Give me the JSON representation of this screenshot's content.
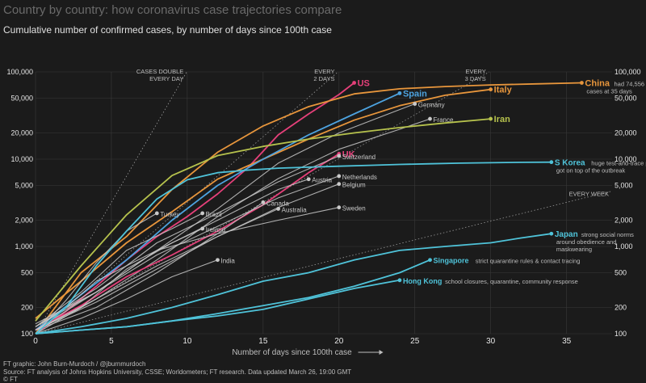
{
  "header": {
    "title": "Country by country: how coronavirus case trajectories compare",
    "subtitle": "Cumulative number of confirmed cases, by number of days since 100th case"
  },
  "footer": {
    "credit": "FT graphic: John Burn-Murdoch / @jburnmurdoch",
    "source": "Source: FT analysis of Johns Hopkins University, CSSE; Worldometers; FT research. Data updated March 26, 19:00 GMT",
    "copyright": "© FT"
  },
  "chart_data": {
    "type": "line",
    "title": "Country by country: how coronavirus case trajectories compare",
    "subtitle": "Cumulative number of confirmed cases, by number of days since 100th case",
    "xlabel": "Number of days since 100th case",
    "ylabel": "",
    "xlim": [
      0,
      38
    ],
    "ylim": [
      100,
      100000
    ],
    "yscale": "log",
    "x_ticks": [
      0,
      5,
      10,
      15,
      20,
      25,
      30,
      35
    ],
    "y_ticks": [
      {
        "value": 100,
        "label": "100"
      },
      {
        "value": 200,
        "label": "200"
      },
      {
        "value": 500,
        "label": "500"
      },
      {
        "value": 1000,
        "label": "1,000"
      },
      {
        "value": 2000,
        "label": "2,000"
      },
      {
        "value": 5000,
        "label": "5,000"
      },
      {
        "value": 10000,
        "label": "10,000"
      },
      {
        "value": 20000,
        "label": "20,000"
      },
      {
        "value": 50000,
        "label": "50,000"
      },
      {
        "value": 100000,
        "label": "100,000"
      }
    ],
    "grid": true,
    "colors": {
      "background": "#1b1b1b",
      "grid": "#3a3a3a",
      "text": "#e6e6e6",
      "muted": "#bdbdbd",
      "other_countries": "#c9c9c9"
    },
    "guides": [
      {
        "label_lines": [
          "CASES DOUBLE",
          "EVERY DAY"
        ],
        "doubling_days": 1
      },
      {
        "label_lines": [
          "EVERY",
          "2 DAYS"
        ],
        "doubling_days": 2
      },
      {
        "label_lines": [
          "EVERY",
          "3 DAYS"
        ],
        "doubling_days": 3
      },
      {
        "label_lines": [
          "EVERY WEEK"
        ],
        "doubling_days": 7
      }
    ],
    "series": [
      {
        "name": "US",
        "color": "#e6407a",
        "bold": true,
        "label_size": 11,
        "x": [
          0,
          2,
          4,
          6,
          8,
          10,
          12,
          14,
          16,
          18,
          20,
          21
        ],
        "y": [
          100,
          180,
          350,
          700,
          1300,
          2200,
          4000,
          8000,
          19000,
          33000,
          55000,
          75000
        ]
      },
      {
        "name": "Italy",
        "color": "#e8963c",
        "bold": true,
        "label_size": 11,
        "x": [
          0,
          3,
          6,
          9,
          12,
          15,
          18,
          21,
          24,
          27,
          30
        ],
        "y": [
          150,
          400,
          1100,
          2500,
          5900,
          10000,
          17000,
          28000,
          41000,
          54000,
          63000
        ]
      },
      {
        "name": "China",
        "color": "#e8963c",
        "bold": true,
        "label_size": 11,
        "note": [
          "had 74,556",
          "cases at 35 days"
        ],
        "x": [
          0,
          3,
          6,
          9,
          12,
          15,
          18,
          21,
          24,
          27,
          30,
          33,
          36
        ],
        "y": [
          100,
          500,
          1300,
          4500,
          12000,
          24000,
          40000,
          56000,
          64000,
          68000,
          71000,
          73000,
          75000
        ]
      },
      {
        "name": "Spain",
        "color": "#4da3e0",
        "bold": true,
        "label_size": 11,
        "x": [
          0,
          3,
          6,
          9,
          12,
          15,
          18,
          21,
          24
        ],
        "y": [
          110,
          280,
          700,
          2000,
          5000,
          10000,
          19000,
          33000,
          57000
        ]
      },
      {
        "name": "Germany",
        "color": "#c9c9c9",
        "bold": false,
        "label_size": 8,
        "x": [
          0,
          4,
          8,
          12,
          16,
          20,
          24,
          25
        ],
        "y": [
          120,
          300,
          900,
          2700,
          9000,
          20000,
          37000,
          43000
        ]
      },
      {
        "name": "France",
        "color": "#c9c9c9",
        "bold": false,
        "label_size": 8,
        "x": [
          0,
          4,
          8,
          12,
          16,
          20,
          24,
          26
        ],
        "y": [
          100,
          250,
          700,
          2200,
          6000,
          13000,
          22000,
          29000
        ]
      },
      {
        "name": "Iran",
        "color": "#b6c24d",
        "bold": true,
        "label_size": 11,
        "x": [
          0,
          3,
          6,
          9,
          12,
          15,
          18,
          21,
          24,
          27,
          30
        ],
        "y": [
          140,
          600,
          2300,
          6500,
          11000,
          14000,
          17000,
          20000,
          23000,
          26000,
          29000
        ]
      },
      {
        "name": "UK",
        "color": "#e6407a",
        "bold": true,
        "label_size": 11,
        "x": [
          0,
          3,
          6,
          9,
          12,
          15,
          18,
          20
        ],
        "y": [
          110,
          210,
          450,
          800,
          1500,
          3000,
          7000,
          11500
        ]
      },
      {
        "name": "Switzerland",
        "color": "#c9c9c9",
        "bold": false,
        "label_size": 8,
        "x": [
          0,
          4,
          8,
          12,
          16,
          20
        ],
        "y": [
          120,
          330,
          1100,
          2400,
          5500,
          10900
        ]
      },
      {
        "name": "Netherlands",
        "color": "#c9c9c9",
        "bold": false,
        "label_size": 8,
        "x": [
          0,
          4,
          8,
          12,
          16,
          20
        ],
        "y": [
          130,
          300,
          800,
          1700,
          3600,
          6400
        ]
      },
      {
        "name": "Belgium",
        "color": "#c9c9c9",
        "bold": false,
        "label_size": 8,
        "x": [
          0,
          4,
          8,
          12,
          16,
          20
        ],
        "y": [
          110,
          250,
          600,
          1300,
          2800,
          5200
        ]
      },
      {
        "name": "Austria",
        "color": "#c9c9c9",
        "bold": false,
        "label_size": 8,
        "x": [
          0,
          4,
          8,
          12,
          16,
          18
        ],
        "y": [
          110,
          300,
          900,
          2000,
          4500,
          5900
        ]
      },
      {
        "name": "Canada",
        "color": "#c9c9c9",
        "bold": false,
        "label_size": 8,
        "x": [
          0,
          4,
          8,
          12,
          15
        ],
        "y": [
          110,
          200,
          500,
          1400,
          3200
        ]
      },
      {
        "name": "Australia",
        "color": "#c9c9c9",
        "bold": false,
        "label_size": 8,
        "x": [
          0,
          4,
          8,
          12,
          16
        ],
        "y": [
          110,
          230,
          550,
          1300,
          2700
        ]
      },
      {
        "name": "Sweden",
        "color": "#c9c9c9",
        "bold": false,
        "label_size": 8,
        "x": [
          0,
          4,
          8,
          12,
          16,
          20
        ],
        "y": [
          100,
          400,
          900,
          1400,
          2000,
          2800
        ]
      },
      {
        "name": "Turkey",
        "color": "#c9c9c9",
        "bold": false,
        "label_size": 8,
        "x": [
          0,
          2,
          4,
          6,
          8
        ],
        "y": [
          100,
          240,
          650,
          1500,
          2400
        ]
      },
      {
        "name": "Brazil",
        "color": "#c9c9c9",
        "bold": false,
        "label_size": 8,
        "x": [
          0,
          3,
          6,
          9,
          11
        ],
        "y": [
          120,
          300,
          900,
          1600,
          2400
        ]
      },
      {
        "name": "Ireland",
        "color": "#c9c9c9",
        "bold": false,
        "label_size": 8,
        "x": [
          0,
          3,
          6,
          9,
          11
        ],
        "y": [
          110,
          200,
          550,
          1100,
          1600
        ]
      },
      {
        "name": "India",
        "color": "#c9c9c9",
        "bold": false,
        "label_size": 8,
        "x": [
          0,
          3,
          6,
          9,
          12
        ],
        "y": [
          100,
          150,
          250,
          450,
          700
        ]
      },
      {
        "name": "S Korea",
        "color": "#4fc3d9",
        "bold": true,
        "label_size": 10,
        "note": [
          "huge test-and-trace programme",
          "got on top of the outbreak"
        ],
        "x": [
          0,
          2,
          4,
          6,
          8,
          10,
          12,
          14,
          16,
          18,
          20,
          22,
          24,
          26,
          28,
          30,
          32,
          34
        ],
        "y": [
          100,
          200,
          600,
          1500,
          3500,
          5800,
          7000,
          7500,
          7900,
          8100,
          8300,
          8500,
          8700,
          8850,
          9000,
          9100,
          9200,
          9250
        ]
      },
      {
        "name": "Japan",
        "color": "#4fc3d9",
        "bold": true,
        "label_size": 10,
        "note": [
          "strong social norms",
          "around obedience and",
          "maskwearing"
        ],
        "x": [
          0,
          3,
          6,
          9,
          12,
          15,
          18,
          21,
          24,
          27,
          30,
          32,
          34
        ],
        "y": [
          100,
          120,
          150,
          200,
          280,
          400,
          500,
          700,
          900,
          1000,
          1100,
          1250,
          1400
        ]
      },
      {
        "name": "Singapore",
        "color": "#4fc3d9",
        "bold": true,
        "label_size": 9,
        "note": [
          "strict quarantine rules & contact tracing"
        ],
        "x": [
          0,
          3,
          6,
          9,
          12,
          15,
          18,
          21,
          24,
          26
        ],
        "y": [
          100,
          110,
          120,
          140,
          170,
          210,
          260,
          350,
          500,
          700
        ]
      },
      {
        "name": "Hong Kong",
        "color": "#4fc3d9",
        "bold": true,
        "label_size": 9,
        "note": [
          "school closures, quarantine, community response"
        ],
        "x": [
          0,
          3,
          6,
          9,
          12,
          15,
          18,
          21,
          24
        ],
        "y": [
          100,
          110,
          120,
          140,
          160,
          190,
          250,
          330,
          410
        ]
      }
    ]
  }
}
